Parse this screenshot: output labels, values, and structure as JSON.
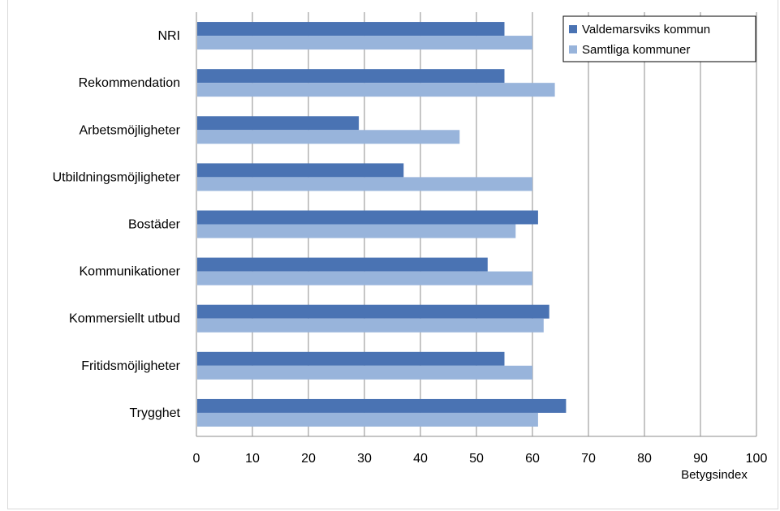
{
  "chart_data": {
    "type": "bar",
    "orientation": "horizontal",
    "categories": [
      "NRI",
      "Rekommendation",
      "Arbetsmöjligheter",
      "Utbildningsmöjligheter",
      "Bostäder",
      "Kommunikationer",
      "Kommersiellt utbud",
      "Fritidsmöjligheter",
      "Trygghet"
    ],
    "series": [
      {
        "name": "Valdemarsviks kommun",
        "color": "#4a73b3",
        "values": [
          55,
          55,
          29,
          37,
          61,
          52,
          63,
          55,
          66
        ]
      },
      {
        "name": "Samtliga kommuner",
        "color": "#98b4db",
        "values": [
          60,
          64,
          47,
          60,
          57,
          60,
          62,
          60,
          61
        ]
      }
    ],
    "xlabel": "Betygsindex",
    "xlim": [
      0,
      100
    ],
    "xticks": [
      0,
      10,
      20,
      30,
      40,
      50,
      60,
      70,
      80,
      90,
      100
    ],
    "grid": true,
    "legend_position": "top-right"
  }
}
